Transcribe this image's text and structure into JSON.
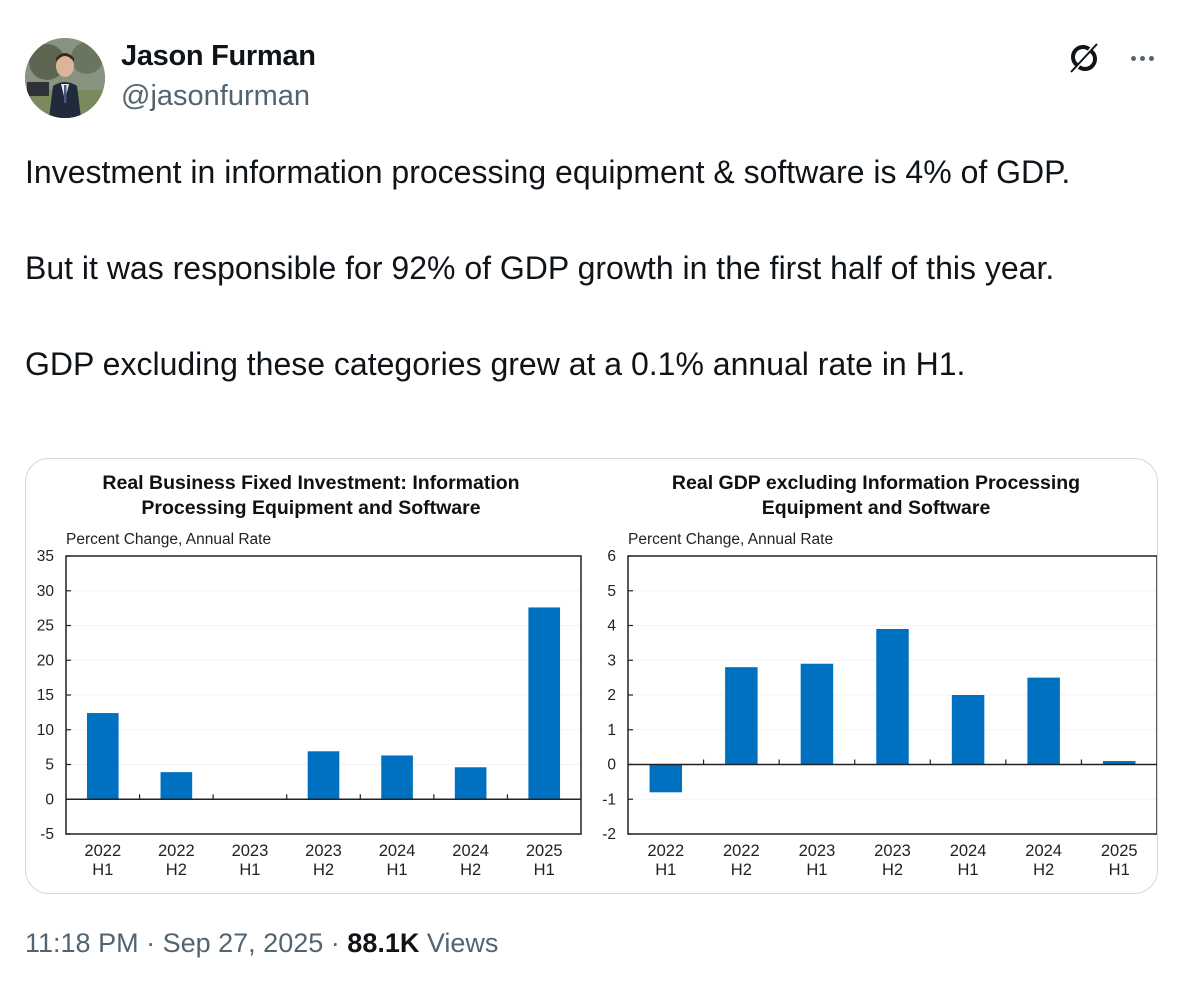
{
  "author": {
    "name": "Jason Furman",
    "handle": "@jasonfurman"
  },
  "icons": {
    "grok": "grok-icon",
    "more": "more-options-icon"
  },
  "tweet": {
    "paragraphs": [
      "Investment in information processing equipment & software is 4% of GDP.",
      "But it was responsible for 92% of GDP growth in the first half of this year.",
      "GDP excluding these categories grew at a 0.1% annual rate in H1."
    ]
  },
  "footer": {
    "time": "11:18 PM",
    "separator": "·",
    "date": "Sep 27, 2025",
    "views_count": "88.1K",
    "views_label": "Views"
  },
  "chart_data": [
    {
      "type": "bar",
      "title": "Real Business Fixed Investment: Information Processing Equipment and Software",
      "title_lines": [
        "Real Business Fixed Investment: Information",
        "Processing Equipment and Software"
      ],
      "ylabel": "Percent Change, Annual Rate",
      "xlabel": "",
      "categories": [
        [
          "2022",
          "H1"
        ],
        [
          "2022",
          "H2"
        ],
        [
          "2023",
          "H1"
        ],
        [
          "2023",
          "H2"
        ],
        [
          "2024",
          "H1"
        ],
        [
          "2024",
          "H2"
        ],
        [
          "2025",
          "H1"
        ]
      ],
      "values": [
        12.4,
        3.9,
        0.1,
        6.9,
        6.3,
        4.6,
        27.6
      ],
      "ylim": [
        -5,
        35
      ],
      "yticks": [
        35,
        30,
        25,
        20,
        15,
        10,
        5,
        0,
        -5
      ],
      "bar_color": "#0070c0",
      "grid": false,
      "legend": "none"
    },
    {
      "type": "bar",
      "title": "Real GDP excluding Information Processing Equipment and Software",
      "title_lines": [
        "Real GDP excluding Information Processing",
        "Equipment and Software"
      ],
      "ylabel": "Percent Change, Annual Rate",
      "xlabel": "",
      "categories": [
        [
          "2022",
          "H1"
        ],
        [
          "2022",
          "H2"
        ],
        [
          "2023",
          "H1"
        ],
        [
          "2023",
          "H2"
        ],
        [
          "2024",
          "H1"
        ],
        [
          "2024",
          "H2"
        ],
        [
          "2025",
          "H1"
        ]
      ],
      "values": [
        -0.8,
        2.8,
        2.9,
        3.9,
        2.0,
        2.5,
        0.1
      ],
      "ylim": [
        -2,
        6
      ],
      "yticks": [
        6,
        5,
        4,
        3,
        2,
        1,
        0,
        -1,
        -2
      ],
      "bar_color": "#0070c0",
      "grid": false,
      "legend": "none"
    }
  ]
}
